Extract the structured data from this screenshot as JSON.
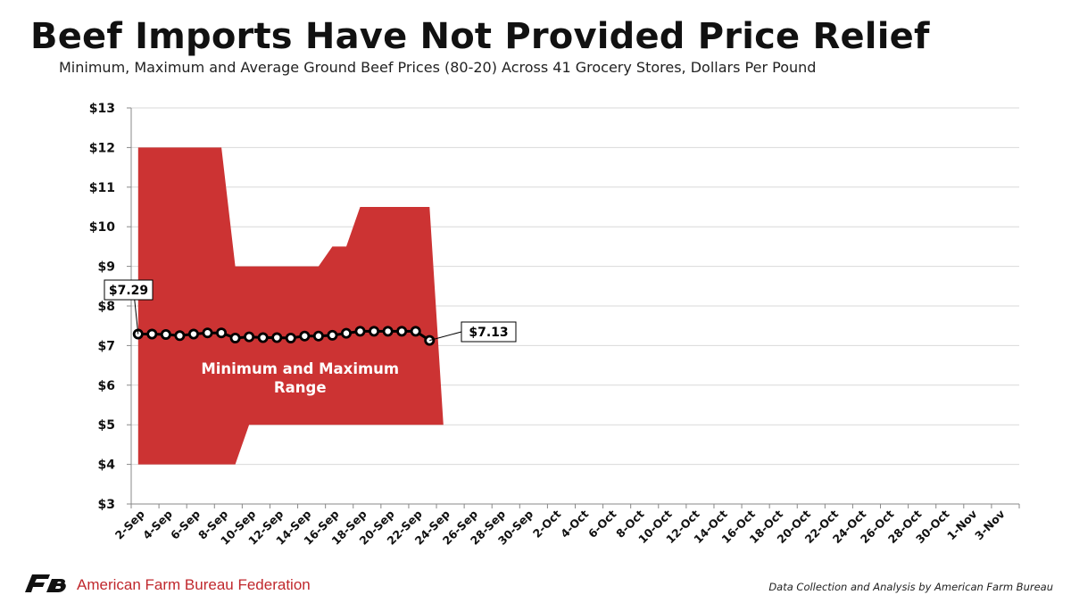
{
  "header": {
    "title": "Beef Imports Have Not Provided Price Relief",
    "subtitle": "Minimum, Maximum and Average Ground Beef Prices (80-20) Across 41 Grocery Stores, Dollars Per Pound"
  },
  "footer": {
    "organization": "American Farm Bureau Federation",
    "source": "Data Collection and Analysis by American Farm Bureau"
  },
  "colors": {
    "range_fill": "#cc3333",
    "average_line": "#000000",
    "grid": "#d9d9d9",
    "org_text": "#c0282d"
  },
  "chart_data": {
    "type": "area",
    "ylim": [
      3,
      13
    ],
    "y_tick_labels": [
      "$3",
      "$4",
      "$5",
      "$6",
      "$7",
      "$8",
      "$9",
      "$10",
      "$11",
      "$12",
      "$13"
    ],
    "x_tick_labels": [
      "2-Sep",
      "4-Sep",
      "6-Sep",
      "8-Sep",
      "10-Sep",
      "12-Sep",
      "14-Sep",
      "16-Sep",
      "18-Sep",
      "20-Sep",
      "22-Sep",
      "24-Sep",
      "26-Sep",
      "28-Sep",
      "30-Sep",
      "2-Oct",
      "4-Oct",
      "6-Oct",
      "8-Oct",
      "10-Oct",
      "12-Oct",
      "14-Oct",
      "16-Oct",
      "18-Oct",
      "20-Oct",
      "22-Oct",
      "24-Oct",
      "26-Oct",
      "28-Oct",
      "30-Oct",
      "1-Nov",
      "3-Nov"
    ],
    "grid": true,
    "range_label": "Minimum and Maximum Range",
    "series": [
      {
        "x": [
          "2-Sep",
          "3-Sep",
          "4-Sep",
          "5-Sep",
          "6-Sep",
          "7-Sep",
          "8-Sep",
          "9-Sep",
          "10-Sep",
          "11-Sep",
          "12-Sep",
          "13-Sep",
          "14-Sep",
          "15-Sep",
          "16-Sep",
          "17-Sep",
          "18-Sep",
          "19-Sep",
          "20-Sep",
          "21-Sep",
          "22-Sep",
          "23-Sep",
          "24-Sep"
        ],
        "values": [
          12,
          12,
          12,
          12,
          12,
          12,
          12,
          9,
          9,
          9,
          9,
          9,
          9,
          9,
          9.5,
          9.5,
          10.5,
          10.5,
          10.5,
          10.5,
          10.5,
          10.5,
          5
        ]
      },
      {
        "x": [
          "2-Sep",
          "3-Sep",
          "4-Sep",
          "5-Sep",
          "6-Sep",
          "7-Sep",
          "8-Sep",
          "9-Sep",
          "10-Sep",
          "11-Sep",
          "12-Sep",
          "13-Sep",
          "14-Sep",
          "15-Sep",
          "16-Sep",
          "17-Sep",
          "18-Sep",
          "19-Sep",
          "20-Sep",
          "21-Sep",
          "22-Sep",
          "23-Sep",
          "24-Sep"
        ],
        "values": [
          4,
          4,
          4,
          4,
          4,
          4,
          4,
          4,
          5,
          5,
          5,
          5,
          5,
          5,
          5,
          5,
          5,
          5,
          5,
          5,
          5,
          5,
          5
        ]
      },
      {
        "x": [
          "2-Sep",
          "3-Sep",
          "4-Sep",
          "5-Sep",
          "6-Sep",
          "7-Sep",
          "8-Sep",
          "9-Sep",
          "10-Sep",
          "11-Sep",
          "12-Sep",
          "13-Sep",
          "14-Sep",
          "15-Sep",
          "16-Sep",
          "17-Sep",
          "18-Sep",
          "19-Sep",
          "20-Sep",
          "21-Sep",
          "22-Sep",
          "23-Sep"
        ],
        "values": [
          7.29,
          7.29,
          7.28,
          7.25,
          7.29,
          7.32,
          7.32,
          7.19,
          7.22,
          7.2,
          7.2,
          7.19,
          7.24,
          7.24,
          7.26,
          7.31,
          7.36,
          7.36,
          7.36,
          7.36,
          7.36,
          7.13
        ]
      }
    ],
    "annotations": [
      {
        "text": "$7.29",
        "x": "2-Sep",
        "y": 7.29
      },
      {
        "text": "$7.13",
        "x": "23-Sep",
        "y": 7.13
      }
    ]
  }
}
